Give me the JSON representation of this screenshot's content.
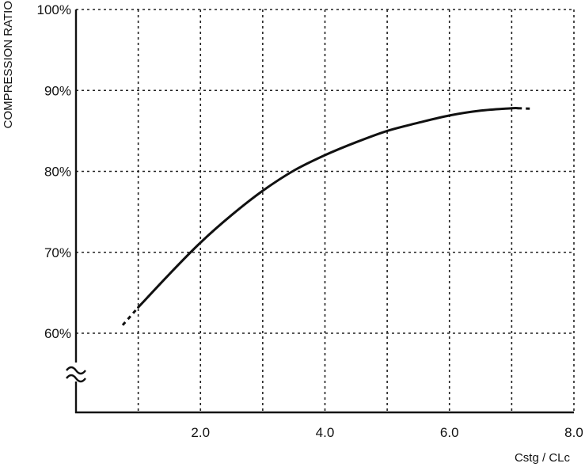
{
  "chart_data": {
    "type": "line",
    "title": "",
    "xlabel": "Cstg / CLc",
    "ylabel": "COMPRESSION RATIO",
    "xlim": [
      0,
      8
    ],
    "ylim": [
      55,
      100
    ],
    "axis_break": "y",
    "grid": true,
    "x_ticks": [
      {
        "value": 2,
        "label": "2.0"
      },
      {
        "value": 4,
        "label": "4.0"
      },
      {
        "value": 6,
        "label": "6.0"
      },
      {
        "value": 8,
        "label": "8.0"
      }
    ],
    "y_ticks": [
      {
        "value": 60,
        "label": "60%"
      },
      {
        "value": 70,
        "label": "70%"
      },
      {
        "value": 80,
        "label": "80%"
      },
      {
        "value": 90,
        "label": "90%"
      },
      {
        "value": 100,
        "label": "100%"
      }
    ],
    "series": [
      {
        "x": [
          0.75,
          1.0,
          1.5,
          2.0,
          2.5,
          3.0,
          3.5,
          4.0,
          4.5,
          5.0,
          5.5,
          6.0,
          6.5,
          7.0,
          7.3
        ],
        "y": [
          61.0,
          63.2,
          67.3,
          71.2,
          74.6,
          77.6,
          80.1,
          82.0,
          83.6,
          85.0,
          86.0,
          86.9,
          87.5,
          87.8,
          87.8
        ],
        "dashed_segments": [
          [
            0.75,
            1.0
          ],
          [
            7.1,
            7.3
          ]
        ]
      }
    ]
  }
}
